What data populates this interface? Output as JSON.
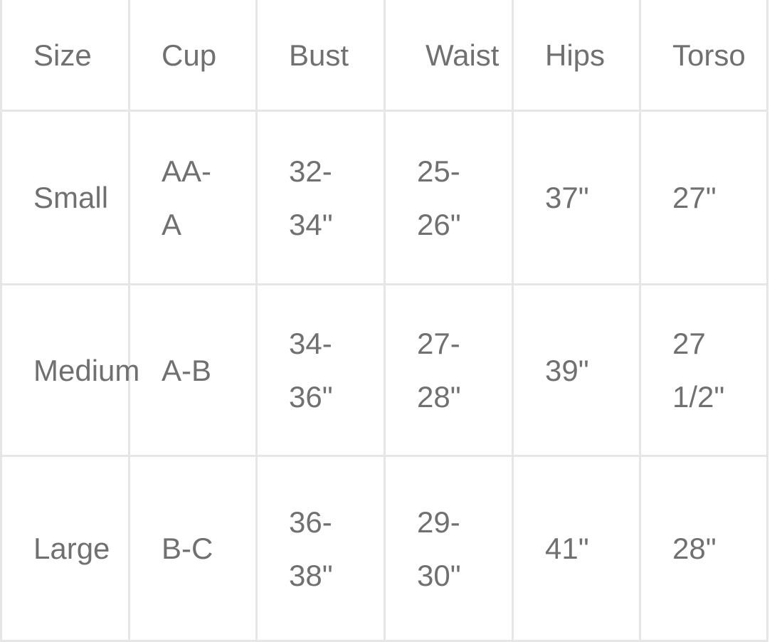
{
  "table": {
    "headers": [
      "Size",
      "Cup",
      "Bust",
      "Waist",
      "Hips",
      "Torso"
    ],
    "rows": [
      [
        "Small",
        "AA-A",
        "32-34\"",
        "25-26\"",
        "37\"",
        "27\""
      ],
      [
        "Medium",
        "A-B",
        "34-36\"",
        "27-28\"",
        "39\"",
        "27 1/2\""
      ],
      [
        "Large",
        "B-C",
        "36-38\"",
        "29-30\"",
        "41\"",
        "28\""
      ]
    ]
  },
  "colors": {
    "text": "#707070",
    "border": "#e6e6e6"
  }
}
